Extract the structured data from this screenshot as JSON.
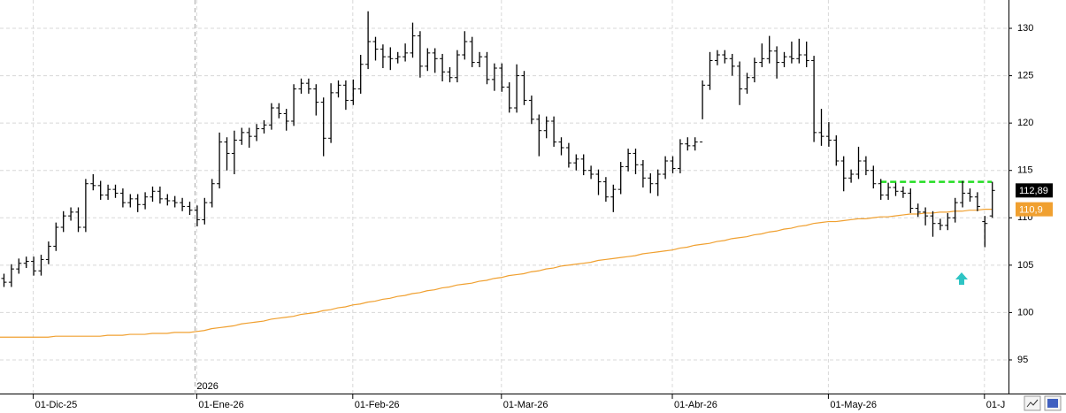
{
  "chart_data": {
    "type": "ohlc",
    "categories": [
      null,
      null,
      null,
      null,
      "01-Dic-25",
      null,
      null,
      null,
      null,
      null,
      null,
      null,
      null,
      null,
      null,
      null,
      null,
      null,
      null,
      null,
      null,
      null,
      null,
      null,
      null,
      null,
      "01-Ene-26",
      null,
      null,
      null,
      null,
      null,
      null,
      null,
      null,
      null,
      null,
      null,
      null,
      null,
      null,
      null,
      null,
      null,
      null,
      null,
      null,
      "01-Feb-26",
      null,
      null,
      null,
      null,
      null,
      null,
      null,
      null,
      null,
      null,
      null,
      null,
      null,
      null,
      null,
      null,
      null,
      null,
      null,
      "01-Mar-26",
      null,
      null,
      null,
      null,
      null,
      null,
      null,
      null,
      null,
      null,
      null,
      null,
      null,
      null,
      null,
      null,
      null,
      null,
      null,
      null,
      null,
      null,
      "01-Abr-26",
      null,
      null,
      null,
      null,
      null,
      null,
      null,
      null,
      null,
      null,
      null,
      null,
      null,
      null,
      null,
      null,
      null,
      null,
      null,
      null,
      "01-May-26",
      null,
      null,
      null,
      null,
      null,
      null,
      null,
      null,
      null,
      null,
      null,
      null,
      null,
      null,
      null,
      null,
      null,
      null,
      null,
      null,
      "01-J",
      null
    ],
    "year_label": "2026",
    "ohlc": {
      "color": "#000000",
      "last_label": "112,89",
      "open": [
        103.6,
        103.2,
        104.6,
        105.2,
        105.4,
        104.4,
        105.6,
        107.0,
        109.0,
        110.2,
        110.6,
        109.0,
        113.6,
        113.4,
        112.4,
        113.0,
        112.6,
        111.6,
        112.0,
        111.4,
        112.2,
        112.8,
        112.0,
        111.8,
        111.6,
        111.2,
        110.8,
        109.8,
        111.6,
        113.6,
        118.0,
        116.8,
        118.2,
        119.0,
        118.6,
        119.4,
        119.8,
        121.6,
        121.0,
        120.2,
        123.6,
        124.2,
        123.6,
        122.2,
        118.4,
        123.2,
        124.0,
        122.4,
        123.6,
        126.2,
        128.6,
        127.8,
        127.0,
        126.8,
        127.0,
        127.4,
        129.2,
        126.0,
        127.4,
        126.8,
        125.4,
        124.8,
        127.2,
        128.6,
        126.4,
        127.0,
        124.6,
        125.8,
        123.8,
        121.6,
        125.0,
        122.4,
        120.4,
        119.2,
        120.2,
        118.0,
        117.4,
        115.8,
        116.2,
        115.0,
        114.6,
        113.8,
        112.2,
        113.0,
        115.4,
        116.8,
        115.6,
        114.2,
        113.6,
        114.6,
        116.0,
        115.2,
        117.8,
        117.6,
        118.0,
        124.0,
        126.6,
        127.2,
        126.8,
        126.0,
        123.6,
        124.8,
        126.4,
        126.8,
        127.6,
        126.4,
        127.0,
        126.8,
        127.2,
        126.6,
        119.0,
        118.6,
        118.2,
        116.0,
        114.2,
        114.6,
        116.0,
        115.0,
        113.6,
        112.4,
        113.2,
        112.8,
        112.6,
        111.0,
        110.6,
        110.2,
        109.4,
        109.2,
        110.0,
        111.6,
        112.6,
        112.2,
        109.6,
        110.2
      ],
      "high": [
        104.1,
        105.1,
        105.7,
        105.9,
        105.9,
        106.1,
        107.5,
        109.5,
        110.7,
        111.1,
        111.1,
        114.1,
        114.6,
        113.9,
        113.5,
        113.5,
        113.1,
        112.5,
        112.5,
        112.7,
        113.3,
        113.3,
        112.5,
        112.3,
        112.1,
        111.7,
        111.3,
        112.1,
        114.1,
        119.0,
        118.5,
        119.2,
        119.5,
        119.5,
        119.9,
        120.3,
        122.1,
        122.1,
        121.5,
        124.1,
        124.7,
        124.7,
        124.1,
        122.7,
        124.2,
        124.5,
        124.5,
        124.6,
        127.2,
        131.8,
        129.1,
        128.3,
        128.0,
        127.5,
        128.4,
        130.6,
        129.7,
        127.9,
        127.9,
        127.3,
        125.9,
        127.7,
        129.7,
        129.1,
        127.5,
        127.5,
        126.3,
        126.3,
        124.3,
        126.2,
        125.5,
        122.9,
        120.9,
        120.7,
        120.7,
        118.5,
        117.9,
        116.7,
        116.7,
        115.5,
        115.1,
        114.3,
        113.5,
        115.9,
        117.3,
        117.3,
        116.1,
        114.7,
        115.1,
        116.5,
        116.5,
        118.3,
        118.5,
        118.5,
        124.5,
        127.5,
        127.7,
        127.7,
        127.3,
        126.5,
        125.3,
        126.9,
        128.4,
        129.2,
        128.1,
        127.5,
        128.6,
        128.9,
        128.6,
        127.1,
        121.5,
        120.1,
        118.7,
        116.5,
        115.1,
        117.5,
        116.5,
        115.5,
        114.1,
        113.7,
        113.7,
        113.3,
        113.1,
        111.5,
        111.1,
        110.7,
        109.9,
        110.5,
        112.1,
        113.9,
        113.1,
        112.7,
        110.2,
        113.8
      ],
      "low": [
        102.7,
        102.7,
        104.1,
        104.7,
        103.9,
        103.9,
        105.1,
        106.5,
        108.5,
        109.7,
        108.5,
        108.5,
        112.9,
        111.9,
        111.9,
        112.1,
        111.1,
        111.1,
        110.6,
        110.9,
        111.7,
        111.5,
        111.3,
        111.1,
        110.7,
        110.3,
        109.1,
        109.3,
        111.1,
        113.1,
        115.0,
        114.6,
        117.7,
        117.4,
        118.1,
        118.9,
        119.3,
        120.5,
        119.2,
        119.7,
        123.1,
        123.1,
        120.8,
        116.5,
        117.9,
        122.7,
        121.4,
        121.9,
        123.1,
        125.7,
        126.6,
        125.8,
        125.6,
        126.3,
        126.5,
        126.9,
        124.8,
        125.5,
        125.3,
        124.4,
        124.3,
        124.3,
        126.7,
        125.9,
        125.9,
        124.1,
        123.4,
        123.3,
        121.1,
        121.1,
        121.9,
        119.9,
        116.5,
        118.4,
        117.5,
        116.6,
        115.3,
        115.0,
        114.5,
        114.1,
        112.4,
        111.7,
        110.6,
        112.5,
        114.9,
        114.6,
        113.2,
        112.6,
        112.3,
        114.1,
        114.7,
        114.7,
        117.1,
        117.1,
        120.4,
        123.5,
        126.1,
        126.3,
        125.0,
        121.9,
        123.1,
        124.3,
        125.9,
        126.3,
        124.7,
        125.9,
        126.3,
        126.3,
        125.9,
        118.0,
        117.6,
        117.5,
        115.5,
        112.8,
        113.7,
        114.1,
        114.5,
        113.1,
        111.9,
        111.9,
        112.3,
        112.1,
        110.5,
        110.1,
        109.2,
        108.0,
        108.7,
        108.7,
        109.5,
        111.1,
        111.7,
        110.7,
        106.9,
        110.0
      ],
      "close": [
        103.2,
        104.6,
        105.2,
        105.4,
        104.4,
        105.6,
        107.0,
        109.0,
        110.2,
        110.6,
        109.0,
        113.6,
        113.4,
        112.4,
        113.0,
        112.6,
        111.6,
        112.0,
        111.4,
        112.2,
        112.8,
        112.0,
        111.8,
        111.6,
        111.2,
        110.8,
        109.8,
        111.6,
        113.6,
        118.0,
        116.8,
        118.2,
        119.0,
        118.6,
        119.4,
        119.8,
        121.6,
        121.0,
        120.2,
        123.6,
        124.2,
        123.6,
        122.2,
        118.4,
        123.2,
        124.0,
        122.4,
        123.6,
        126.2,
        128.6,
        127.8,
        127.0,
        126.8,
        127.0,
        127.4,
        129.2,
        126.0,
        127.4,
        126.8,
        125.4,
        124.8,
        127.2,
        128.6,
        126.4,
        127.0,
        124.6,
        125.8,
        123.8,
        121.6,
        125.0,
        122.4,
        120.4,
        119.2,
        120.2,
        118.0,
        117.4,
        115.8,
        116.2,
        115.0,
        114.6,
        113.8,
        112.2,
        113.0,
        115.4,
        116.8,
        115.6,
        114.2,
        113.6,
        114.6,
        116.0,
        115.2,
        117.8,
        117.6,
        118.0,
        124.0,
        126.6,
        127.2,
        126.8,
        126.0,
        123.6,
        124.8,
        126.4,
        126.8,
        127.6,
        126.4,
        127.0,
        126.8,
        127.2,
        126.6,
        119.0,
        118.6,
        118.2,
        116.0,
        114.2,
        114.6,
        116.0,
        115.0,
        113.6,
        112.4,
        113.2,
        112.8,
        112.6,
        111.0,
        110.6,
        110.2,
        109.4,
        109.2,
        110.0,
        111.6,
        112.6,
        112.2,
        111.2,
        109.4,
        112.89
      ]
    },
    "lines": [
      {
        "color": "#f0a030",
        "last_label": "110,9",
        "values": [
          97.4,
          97.4,
          97.4,
          97.4,
          97.4,
          97.4,
          97.4,
          97.5,
          97.5,
          97.5,
          97.5,
          97.5,
          97.5,
          97.5,
          97.6,
          97.6,
          97.6,
          97.7,
          97.7,
          97.7,
          97.8,
          97.8,
          97.8,
          97.9,
          97.9,
          97.9,
          98.0,
          98.1,
          98.3,
          98.4,
          98.5,
          98.6,
          98.8,
          98.9,
          99.0,
          99.1,
          99.3,
          99.4,
          99.5,
          99.6,
          99.8,
          99.9,
          100.0,
          100.2,
          100.3,
          100.5,
          100.6,
          100.8,
          100.9,
          101.1,
          101.2,
          101.4,
          101.5,
          101.7,
          101.8,
          102.0,
          102.1,
          102.3,
          102.4,
          102.6,
          102.7,
          102.9,
          103.0,
          103.1,
          103.3,
          103.4,
          103.6,
          103.7,
          103.9,
          104.0,
          104.1,
          104.3,
          104.4,
          104.6,
          104.7,
          104.9,
          105.0,
          105.1,
          105.2,
          105.3,
          105.5,
          105.6,
          105.7,
          105.8,
          105.9,
          106.0,
          106.2,
          106.3,
          106.4,
          106.5,
          106.6,
          106.8,
          106.9,
          107.1,
          107.2,
          107.3,
          107.5,
          107.6,
          107.8,
          107.9,
          108.0,
          108.2,
          108.3,
          108.5,
          108.6,
          108.8,
          108.9,
          109.1,
          109.2,
          109.4,
          109.5,
          109.6,
          109.6,
          109.7,
          109.8,
          109.9,
          109.9,
          110.0,
          110.1,
          110.1,
          110.2,
          110.3,
          110.4,
          110.4,
          110.5,
          110.5,
          110.6,
          110.6,
          110.7,
          110.7,
          110.8,
          110.8,
          110.9,
          110.9
        ]
      }
    ],
    "level": {
      "value": 113.8,
      "color": "#22dd22"
    },
    "ylim": [
      91.45,
      132.99
    ],
    "yticks": [
      95,
      100,
      105,
      110,
      115,
      120,
      125,
      130
    ],
    "grid": true
  }
}
